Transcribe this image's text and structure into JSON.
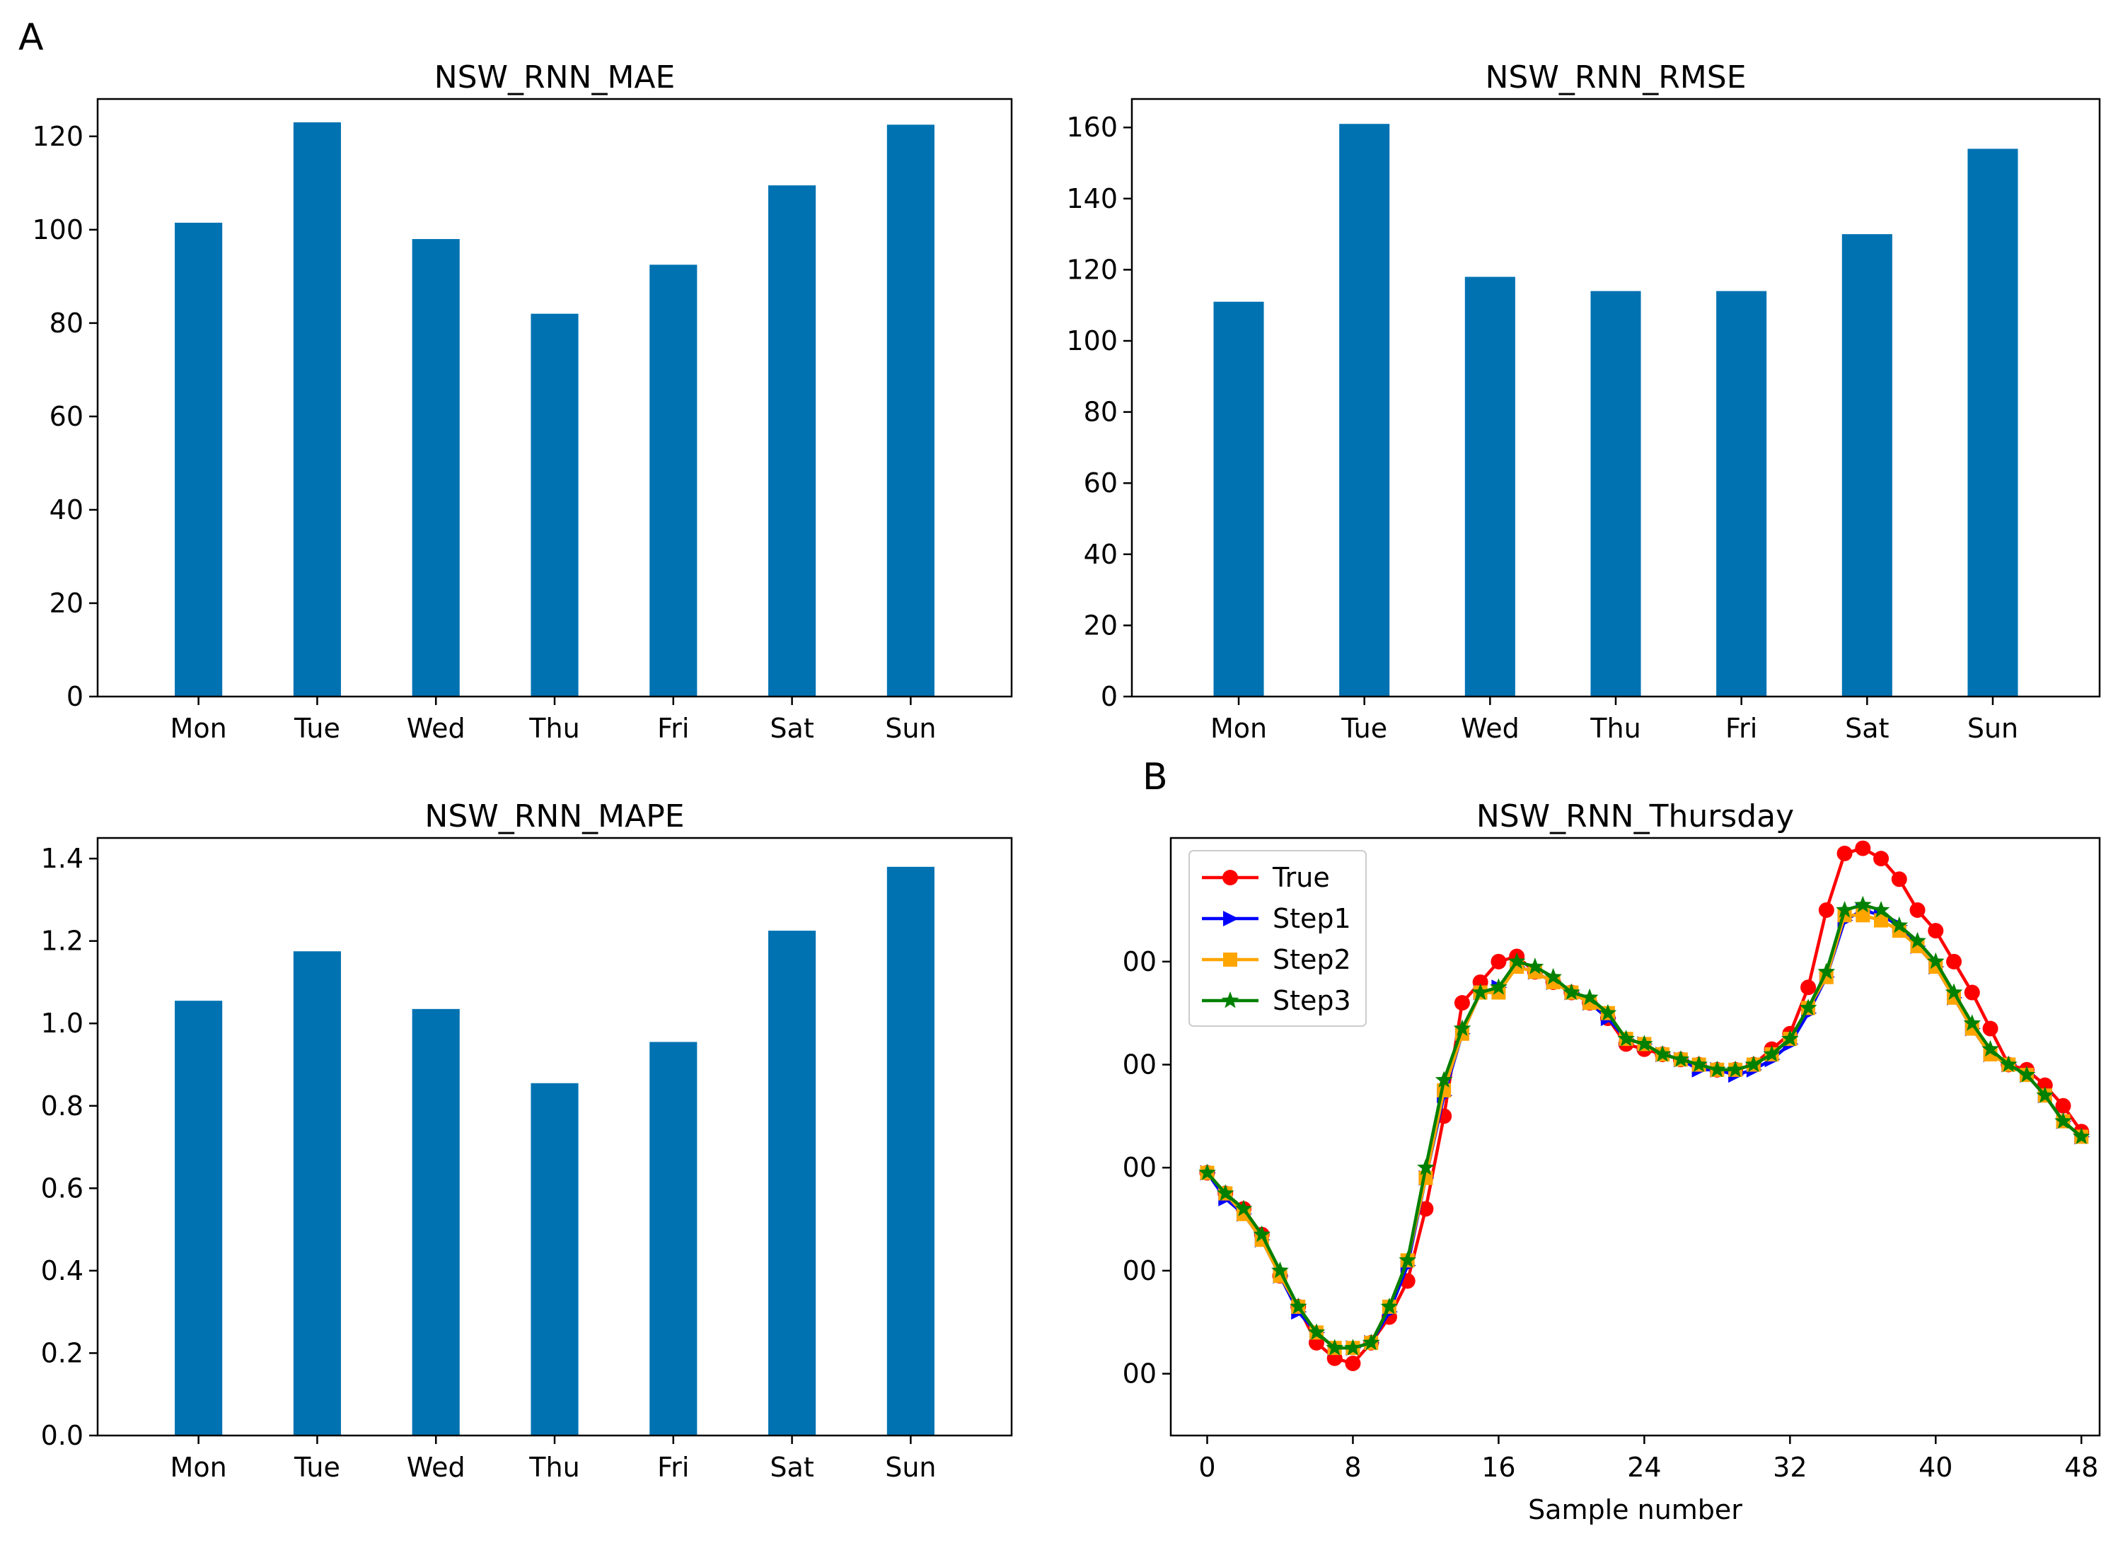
{
  "panel_labels": {
    "a": "A",
    "b": "B"
  },
  "colors": {
    "bar": "#0072b2",
    "true": "#ff0000",
    "step1": "#0000ff",
    "step2": "#ffa500",
    "step3": "#008000",
    "axis": "#000000",
    "background": "#ffffff"
  },
  "chart_data": [
    {
      "id": "mae",
      "type": "bar",
      "title": "NSW_RNN_MAE",
      "categories": [
        "Mon",
        "Tue",
        "Wed",
        "Thu",
        "Fri",
        "Sat",
        "Sun"
      ],
      "values": [
        101.5,
        123,
        98,
        82,
        92.5,
        109.5,
        122.5
      ],
      "ylim": [
        0,
        128
      ],
      "yticks": [
        0,
        20,
        40,
        60,
        80,
        100,
        120
      ],
      "ytick_labels": [
        "0",
        "20",
        "40",
        "60",
        "80",
        "100",
        "120"
      ],
      "xlabel": "",
      "ylabel": ""
    },
    {
      "id": "rmse",
      "type": "bar",
      "title": "NSW_RNN_RMSE",
      "categories": [
        "Mon",
        "Tue",
        "Wed",
        "Thu",
        "Fri",
        "Sat",
        "Sun"
      ],
      "values": [
        111,
        161,
        118,
        114,
        114,
        130,
        154
      ],
      "ylim": [
        0,
        168
      ],
      "yticks": [
        0,
        20,
        40,
        60,
        80,
        100,
        120,
        140,
        160
      ],
      "ytick_labels": [
        "0",
        "20",
        "40",
        "60",
        "80",
        "100",
        "120",
        "140",
        "160"
      ],
      "xlabel": "",
      "ylabel": ""
    },
    {
      "id": "mape",
      "type": "bar",
      "title": "NSW_RNN_MAPE",
      "categories": [
        "Mon",
        "Tue",
        "Wed",
        "Thu",
        "Fri",
        "Sat",
        "Sun"
      ],
      "values": [
        1.055,
        1.175,
        1.035,
        0.855,
        0.955,
        1.225,
        1.38
      ],
      "ylim": [
        0,
        1.45
      ],
      "yticks": [
        0,
        0.2,
        0.4,
        0.6,
        0.8,
        1.0,
        1.2,
        1.4
      ],
      "ytick_labels": [
        "0.0",
        "0.2",
        "0.4",
        "0.6",
        "0.8",
        "1.0",
        "1.2",
        "1.4"
      ],
      "xlabel": "",
      "ylabel": ""
    },
    {
      "id": "thursday",
      "type": "line",
      "title": "NSW_RNN_Thursday",
      "xlabel": "Sample number",
      "ylabel": "",
      "xlim": [
        -2,
        49
      ],
      "ylim": [
        5400,
        11200
      ],
      "xticks": [
        0,
        8,
        16,
        24,
        32,
        40,
        48
      ],
      "xtick_labels": [
        "0",
        "8",
        "16",
        "24",
        "32",
        "40",
        "48"
      ],
      "yticks": [
        6000,
        7000,
        8000,
        9000,
        10000
      ],
      "ytick_labels": [
        "00",
        "00",
        "00",
        "00",
        "00"
      ],
      "legend_position": "top-left",
      "series": [
        {
          "name": "True",
          "marker": "circle",
          "color_key": "true",
          "values": [
            7950,
            7750,
            7600,
            7350,
            6950,
            6650,
            6300,
            6150,
            6100,
            6300,
            6550,
            6900,
            7600,
            8500,
            9600,
            9800,
            10000,
            10050,
            9900,
            9800,
            9700,
            9600,
            9450,
            9200,
            9150,
            9100,
            9050,
            9000,
            8950,
            8950,
            9000,
            9150,
            9300,
            9750,
            10500,
            11050,
            11100,
            11000,
            10800,
            10500,
            10300,
            10000,
            9700,
            9350,
            9000,
            8950,
            8800,
            8600,
            8350
          ]
        },
        {
          "name": "Step1",
          "marker": "triangle-right",
          "color_key": "step1",
          "values": [
            7950,
            7700,
            7550,
            7300,
            6950,
            6600,
            6400,
            6250,
            6250,
            6300,
            6600,
            7050,
            7900,
            8700,
            9300,
            9700,
            9750,
            9950,
            9900,
            9800,
            9700,
            9600,
            9450,
            9250,
            9200,
            9100,
            9050,
            8950,
            8950,
            8900,
            8950,
            9050,
            9200,
            9500,
            9850,
            10400,
            10500,
            10450,
            10350,
            10150,
            9950,
            9650,
            9350,
            9100,
            9000,
            8900,
            8700,
            8450,
            8300
          ]
        },
        {
          "name": "Step2",
          "marker": "square",
          "color_key": "step2",
          "values": [
            7950,
            7750,
            7550,
            7300,
            6950,
            6650,
            6400,
            6250,
            6250,
            6300,
            6650,
            7100,
            7900,
            8750,
            9300,
            9700,
            9700,
            9950,
            9900,
            9800,
            9700,
            9600,
            9500,
            9250,
            9200,
            9100,
            9050,
            9000,
            8950,
            8950,
            9000,
            9100,
            9250,
            9550,
            9850,
            10450,
            10450,
            10400,
            10300,
            10150,
            9950,
            9650,
            9350,
            9100,
            9000,
            8900,
            8700,
            8450,
            8300
          ]
        },
        {
          "name": "Step3",
          "marker": "star",
          "color_key": "step3",
          "values": [
            7950,
            7750,
            7600,
            7350,
            7000,
            6650,
            6400,
            6250,
            6250,
            6300,
            6650,
            7100,
            8000,
            8850,
            9350,
            9700,
            9750,
            10000,
            9950,
            9850,
            9700,
            9650,
            9500,
            9250,
            9200,
            9100,
            9050,
            9000,
            8950,
            8950,
            9000,
            9100,
            9250,
            9550,
            9900,
            10500,
            10550,
            10500,
            10350,
            10200,
            10000,
            9700,
            9400,
            9150,
            9000,
            8900,
            8700,
            8450,
            8300
          ]
        }
      ]
    }
  ]
}
